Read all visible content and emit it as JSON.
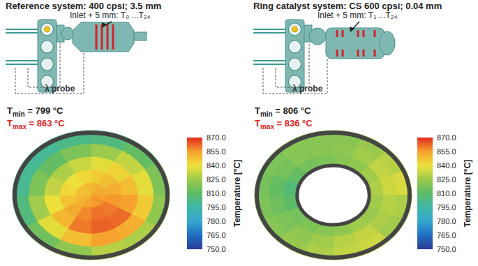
{
  "chart_data": [
    {
      "type": "heatmap",
      "title": "Reference system: 400 cpsi; 3.5 mm",
      "inlet_label": "Inlet + 5 mm: T₀ ...T₂₄",
      "probe_label": "λ probe",
      "tmin": {
        "symbol": "T",
        "subscript": "min",
        "text": " = 799 °C"
      },
      "tmax": {
        "symbol": "T",
        "subscript": "max",
        "text": " = 863 °C"
      },
      "cells": [
        [
          850,
          852,
          853,
          855,
          857,
          856,
          854,
          852,
          850,
          848,
          848,
          849
        ],
        [
          845,
          848,
          852,
          856,
          860,
          861,
          858,
          853,
          847,
          842,
          840,
          842
        ],
        [
          838,
          843,
          848,
          855,
          862,
          863,
          860,
          850,
          840,
          832,
          828,
          833
        ],
        [
          825,
          832,
          838,
          845,
          852,
          855,
          848,
          838,
          826,
          818,
          812,
          818
        ],
        [
          805,
          812,
          818,
          822,
          828,
          830,
          822,
          815,
          805,
          800,
          799,
          802
        ]
      ],
      "colorbar": {
        "title": "Temperature [°C]",
        "range": [
          750,
          870
        ],
        "ticks": [
          {
            "value": 750,
            "label": "750.0"
          },
          {
            "value": 765,
            "label": "765.0"
          },
          {
            "value": 780,
            "label": "780.0"
          },
          {
            "value": 795,
            "label": "795.0"
          },
          {
            "value": 810,
            "label": "810.0"
          },
          {
            "value": 825,
            "label": "825.0"
          },
          {
            "value": 840,
            "label": "840.0"
          },
          {
            "value": 855,
            "label": "855.0"
          },
          {
            "value": 870,
            "label": "870.0"
          }
        ],
        "colors": [
          "#2b3a92",
          "#1f6fc4",
          "#36a6d0",
          "#3fb8a8",
          "#5cbb66",
          "#9cca4c",
          "#eee03a",
          "#f5a22e",
          "#e22a1f"
        ]
      }
    },
    {
      "type": "heatmap",
      "title": "Ring catalyst system: CS 600 cpsi; 0.04 mm",
      "inlet_label": "Inlet + 5 mm: T₁ ...T₂₄",
      "probe_label": "λ probe",
      "tmin": {
        "symbol": "T",
        "subscript": "min",
        "text": " = 806 °C"
      },
      "tmax": {
        "symbol": "T",
        "subscript": "max",
        "text": " = 836 °C"
      },
      "cells": [
        [
          820,
          822,
          826,
          828,
          826,
          824,
          826,
          822,
          820,
          818,
          816,
          810,
          806,
          812,
          816,
          818
        ],
        [
          822,
          826,
          832,
          834,
          830,
          828,
          832,
          830,
          826,
          822,
          818,
          814,
          812,
          816,
          820,
          821
        ],
        [
          820,
          824,
          830,
          836,
          828,
          826,
          834,
          832,
          828,
          824,
          820,
          818,
          816,
          818,
          820,
          820
        ]
      ],
      "colorbar": {
        "title": "Temperature [°C]",
        "range": [
          750,
          870
        ],
        "ticks": [
          {
            "value": 750,
            "label": "750.0"
          },
          {
            "value": 765,
            "label": "765.0"
          },
          {
            "value": 780,
            "label": "780.0"
          },
          {
            "value": 795,
            "label": "795.0"
          },
          {
            "value": 810,
            "label": "810.0"
          },
          {
            "value": 825,
            "label": "825.0"
          },
          {
            "value": 840,
            "label": "840.0"
          },
          {
            "value": 855,
            "label": "855.0"
          },
          {
            "value": 870,
            "label": "870.0"
          }
        ],
        "colors": [
          "#2b3a92",
          "#1f6fc4",
          "#36a6d0",
          "#3fb8a8",
          "#5cbb66",
          "#9cca4c",
          "#eee03a",
          "#f5a22e",
          "#e22a1f"
        ]
      }
    }
  ]
}
